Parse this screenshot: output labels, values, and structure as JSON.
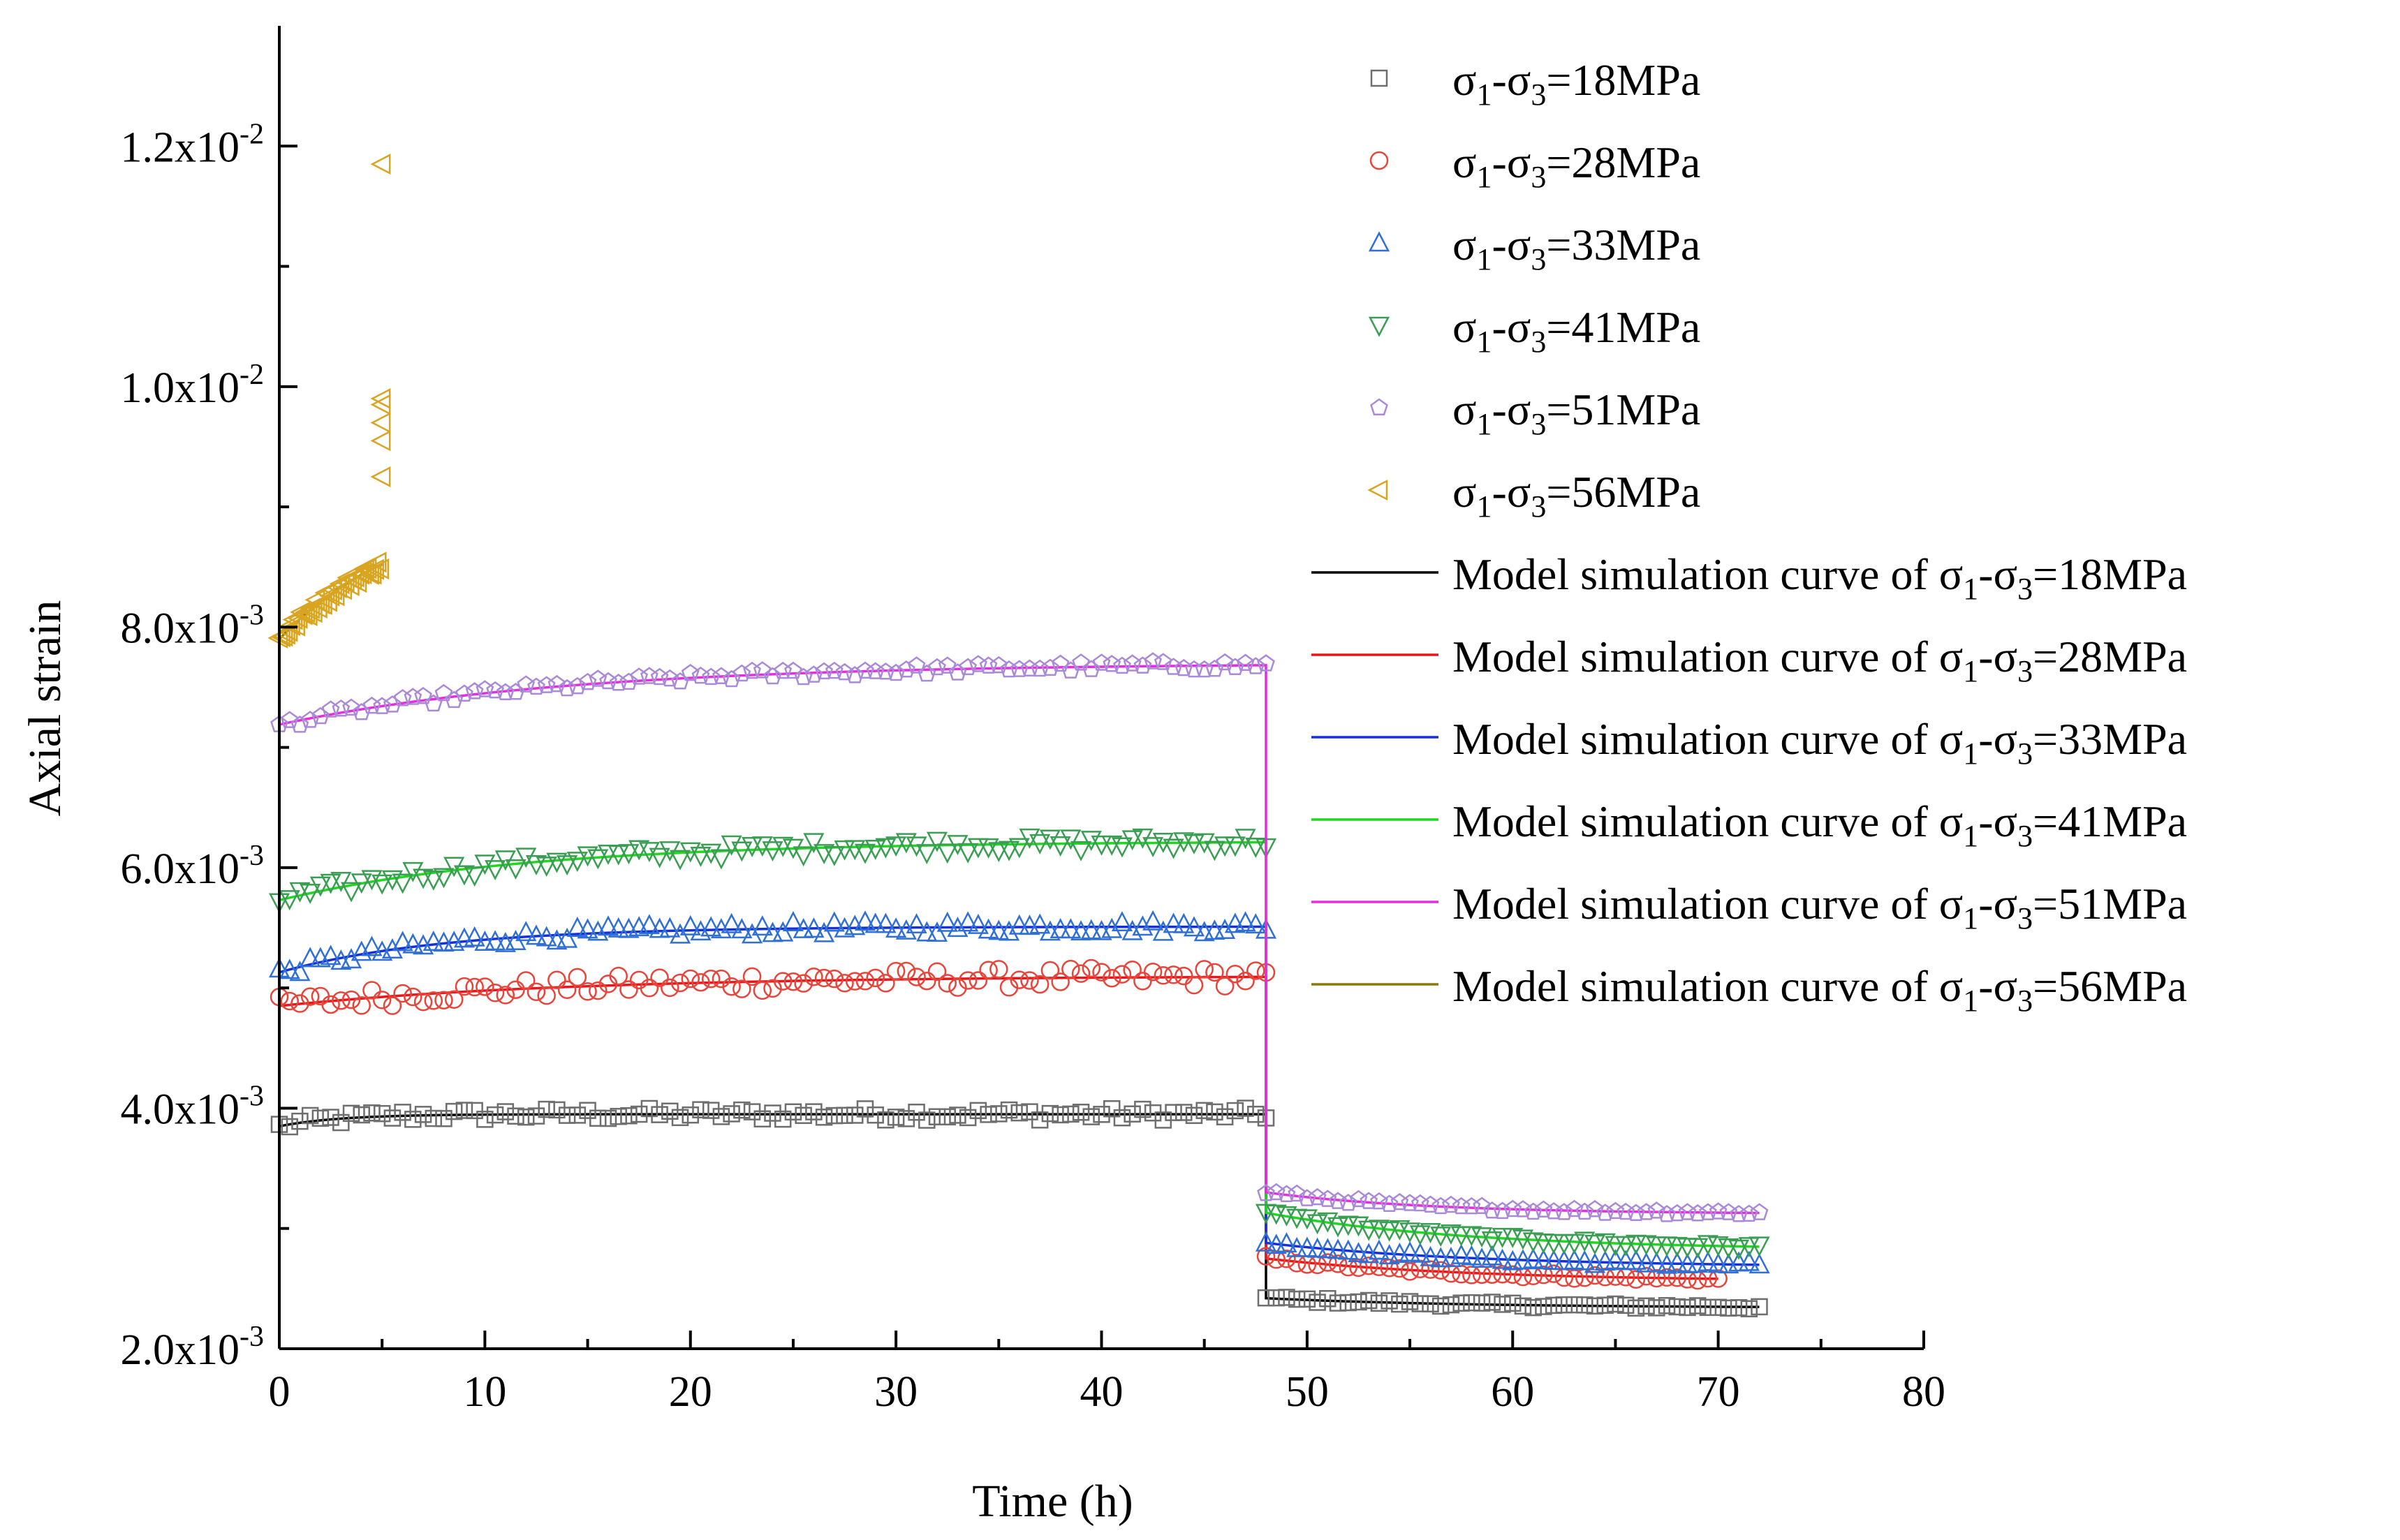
{
  "chart_data": {
    "type": "scatter",
    "xlabel": "Time (h)",
    "ylabel": "Axial strain",
    "xlim": [
      0,
      80
    ],
    "ylim": [
      0.002,
      0.013
    ],
    "x_ticks": [
      {
        "value": 0,
        "label": "0"
      },
      {
        "value": 10,
        "label": "10"
      },
      {
        "value": 20,
        "label": "20"
      },
      {
        "value": 30,
        "label": "30"
      },
      {
        "value": 40,
        "label": "40"
      },
      {
        "value": 50,
        "label": "50"
      },
      {
        "value": 60,
        "label": "60"
      },
      {
        "value": 70,
        "label": "70"
      },
      {
        "value": 80,
        "label": "80"
      }
    ],
    "y_ticks": [
      {
        "value": 0.002,
        "mantissa": "2.0x10",
        "exponent": "-3"
      },
      {
        "value": 0.004,
        "mantissa": "4.0x10",
        "exponent": "-3"
      },
      {
        "value": 0.006,
        "mantissa": "6.0x10",
        "exponent": "-3"
      },
      {
        "value": 0.008,
        "mantissa": "8.0x10",
        "exponent": "-3"
      },
      {
        "value": 0.01,
        "mantissa": "1.0x10",
        "exponent": "-2"
      },
      {
        "value": 0.012,
        "mantissa": "1.2x10",
        "exponent": "-2"
      }
    ],
    "series": [
      {
        "name": "σ1-σ3=18MPa",
        "label_parts": [
          "σ",
          "1",
          "-σ",
          "3",
          "=18MPa"
        ],
        "marker": "square",
        "color": "#6e6e6e",
        "model_color": "#000000",
        "model_label": "Model simulation curve of ",
        "stage1": {
          "t_end": 48,
          "e0": 0.00385,
          "e_inf": 0.00395,
          "tau": 3,
          "noise": 5e-05
        },
        "stage2": {
          "t_start": 48,
          "t_end": 72,
          "e0": 0.00242,
          "e_inf": 0.00234,
          "tau": 10,
          "noise": 2e-05
        }
      },
      {
        "name": "σ1-σ3=28MPa",
        "label_parts": [
          "σ",
          "1",
          "-σ",
          "3",
          "=28MPa"
        ],
        "marker": "circle",
        "color": "#e8443a",
        "model_color": "#e8161b",
        "model_label": "Model simulation curve of ",
        "stage1": {
          "t_end": 48,
          "e0": 0.00485,
          "e_inf": 0.0051,
          "tau": 14,
          "noise": 8e-05
        },
        "stage2": {
          "t_start": 48,
          "t_end": 70,
          "e0": 0.00275,
          "e_inf": 0.00256,
          "tau": 10,
          "noise": 2e-05
        }
      },
      {
        "name": "σ1-σ3=33MPa",
        "label_parts": [
          "σ",
          "1",
          "-σ",
          "3",
          "=33MPa"
        ],
        "marker": "triangle-up",
        "color": "#2f6fd6",
        "model_color": "#1530d8",
        "model_label": "Model simulation curve of ",
        "stage1": {
          "t_end": 48,
          "e0": 0.00513,
          "e_inf": 0.00551,
          "tau": 8,
          "noise": 5e-05
        },
        "stage2": {
          "t_start": 48,
          "t_end": 72,
          "e0": 0.00288,
          "e_inf": 0.00268,
          "tau": 10,
          "noise": 2e-05
        }
      },
      {
        "name": "σ1-σ3=41MPa",
        "label_parts": [
          "σ",
          "1",
          "-σ",
          "3",
          "=41MPa"
        ],
        "marker": "triangle-down",
        "color": "#3a9e52",
        "model_color": "#1ed81e",
        "model_label": "Model simulation curve of ",
        "stage1": {
          "t_end": 48,
          "e0": 0.00573,
          "e_inf": 0.00622,
          "tau": 12,
          "noise": 6e-05
        },
        "stage2": {
          "t_start": 48,
          "t_end": 72,
          "e0": 0.00313,
          "e_inf": 0.00282,
          "tau": 10,
          "noise": 2e-05
        }
      },
      {
        "name": "σ1-σ3=51MPa",
        "label_parts": [
          "σ",
          "1",
          "-σ",
          "3",
          "=51MPa"
        ],
        "marker": "pentagon",
        "color": "#a98ad8",
        "model_color": "#e82be0",
        "model_label": "Model simulation curve of ",
        "stage1": {
          "t_end": 48,
          "e0": 0.00719,
          "e_inf": 0.0077,
          "tau": 14,
          "noise": 4e-05
        },
        "stage2": {
          "t_start": 48,
          "t_end": 72,
          "e0": 0.0033,
          "e_inf": 0.00312,
          "tau": 8,
          "noise": 2e-05
        }
      },
      {
        "name": "σ1-σ3=56MPa",
        "label_parts": [
          "σ",
          "1",
          "-σ",
          "3",
          "=56MPa"
        ],
        "marker": "triangle-left",
        "color": "#d9a520",
        "model_color": "#8b7a0a",
        "model_label": "Model simulation curve of ",
        "stage1": {
          "t_end": 5,
          "e0": 0.0079,
          "e_inf": 0.009,
          "tau": 6,
          "noise": 5e-05
        },
        "outliers": [
          [
            5.0,
            0.00925
          ],
          [
            5.0,
            0.00955
          ],
          [
            5.0,
            0.0097
          ],
          [
            5.0,
            0.00985
          ],
          [
            5.0,
            0.0099
          ],
          [
            5.0,
            0.01185
          ]
        ]
      }
    ]
  }
}
